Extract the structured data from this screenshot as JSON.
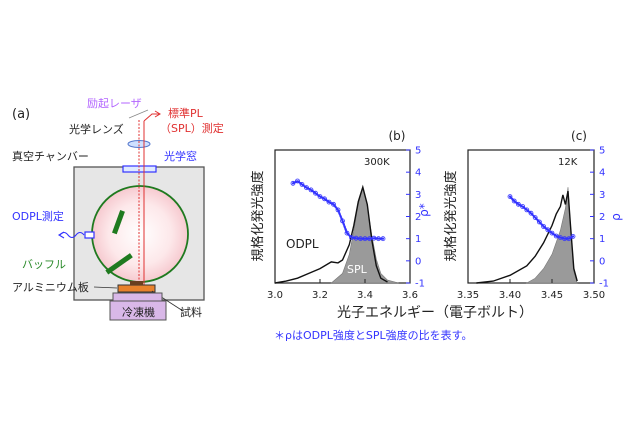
{
  "panel_a": {
    "label": "(a)",
    "excitation_laser": "励起レーザ",
    "spl_line1": "標準PL",
    "spl_line2": "（SPL）測定",
    "optical_lens": "光学レンズ",
    "optical_window": "光学窓",
    "vacuum_chamber": "真空チャンバー",
    "odpl_measure": "ODPL測定",
    "baffle": "バッフル",
    "aluminum_plate": "アルミニウム板",
    "sample": "試料",
    "cooler": "冷凍機",
    "colors": {
      "laser": "#e03030",
      "label_purple": "#b366ff",
      "label_red": "#e03030",
      "label_blue": "#3333ff",
      "label_green": "#2a8a2a",
      "baffle": "#1f7a1f",
      "chamber_fill": "#e6e6e6",
      "cooler": "#d9b8e8",
      "plate": "#e8822c"
    }
  },
  "panel_b": {
    "label": "(b)",
    "temperature": "300K",
    "odpl": "ODPL",
    "spl": "SPL"
  },
  "panel_c": {
    "label": "(c)",
    "temperature": "12K"
  },
  "ylabel_left": "規格化発光強度",
  "ylabel_right_b": "ρ*",
  "ylabel_right_c": "ρ",
  "xlabel": "光子エネルギー（電子ボルト）",
  "footnote": "＊ρはODPL強度とSPL強度の比を表す。",
  "chart_data": [
    {
      "type": "line",
      "panel": "b",
      "xlim": [
        3.0,
        3.6
      ],
      "x_ticks": [
        "3.0",
        "3.2",
        "3.4",
        "3.6"
      ],
      "y_right_lim": [
        -1,
        5
      ],
      "y_right_ticks": [
        "-1",
        "0",
        "1",
        "2",
        "3",
        "4",
        "5"
      ],
      "series": [
        {
          "name": "ODPL",
          "x": [
            3.0,
            3.05,
            3.1,
            3.15,
            3.2,
            3.25,
            3.28,
            3.3,
            3.33,
            3.35,
            3.37,
            3.39,
            3.41,
            3.43,
            3.45,
            3.47,
            3.5
          ],
          "y": [
            0.0,
            0.02,
            0.05,
            0.1,
            0.15,
            0.22,
            0.21,
            0.24,
            0.4,
            0.6,
            0.85,
            1.0,
            0.82,
            0.45,
            0.18,
            0.05,
            0.01
          ]
        },
        {
          "name": "SPL",
          "x": [
            3.25,
            3.3,
            3.33,
            3.35,
            3.37,
            3.39,
            3.41,
            3.43,
            3.45,
            3.47,
            3.5,
            3.55
          ],
          "y": [
            0.0,
            0.1,
            0.3,
            0.55,
            0.82,
            1.0,
            0.8,
            0.5,
            0.25,
            0.1,
            0.03,
            0.0
          ]
        },
        {
          "name": "ρ*",
          "x": [
            3.08,
            3.1,
            3.12,
            3.14,
            3.16,
            3.18,
            3.2,
            3.22,
            3.24,
            3.26,
            3.28,
            3.3,
            3.32,
            3.34,
            3.36,
            3.38,
            3.4,
            3.42,
            3.44,
            3.46,
            3.48
          ],
          "y": [
            3.5,
            3.6,
            3.45,
            3.3,
            3.2,
            3.05,
            2.9,
            2.8,
            2.65,
            2.55,
            2.3,
            1.8,
            1.25,
            1.05,
            1.02,
            1.0,
            1.0,
            1.0,
            1.02,
            1.0,
            1.0
          ]
        }
      ]
    },
    {
      "type": "line",
      "panel": "c",
      "xlim": [
        3.35,
        3.5
      ],
      "x_ticks": [
        "3.35",
        "3.40",
        "3.45",
        "3.50"
      ],
      "y_right_lim": [
        -1,
        5
      ],
      "y_right_ticks": [
        "-1",
        "0",
        "1",
        "2",
        "3",
        "4",
        "5"
      ],
      "series": [
        {
          "name": "ODPL",
          "x": [
            3.36,
            3.38,
            3.4,
            3.42,
            3.43,
            3.44,
            3.45,
            3.455,
            3.46,
            3.463,
            3.466,
            3.469,
            3.472,
            3.476,
            3.48
          ],
          "y": [
            0.0,
            0.02,
            0.08,
            0.18,
            0.28,
            0.42,
            0.6,
            0.72,
            0.8,
            0.92,
            0.82,
            0.96,
            0.6,
            0.15,
            0.02
          ]
        },
        {
          "name": "SPL",
          "x": [
            3.42,
            3.43,
            3.44,
            3.45,
            3.46,
            3.466,
            3.469,
            3.472,
            3.476,
            3.48
          ],
          "y": [
            0.0,
            0.05,
            0.15,
            0.3,
            0.55,
            0.78,
            1.0,
            0.6,
            0.12,
            0.0
          ]
        },
        {
          "name": "ρ",
          "x": [
            3.4,
            3.405,
            3.41,
            3.415,
            3.42,
            3.425,
            3.43,
            3.435,
            3.44,
            3.445,
            3.45,
            3.455,
            3.46,
            3.465,
            3.47,
            3.475
          ],
          "y": [
            2.9,
            2.7,
            2.55,
            2.45,
            2.3,
            2.15,
            1.95,
            1.75,
            1.55,
            1.4,
            1.25,
            1.12,
            1.05,
            1.0,
            1.0,
            1.1
          ]
        }
      ]
    }
  ]
}
